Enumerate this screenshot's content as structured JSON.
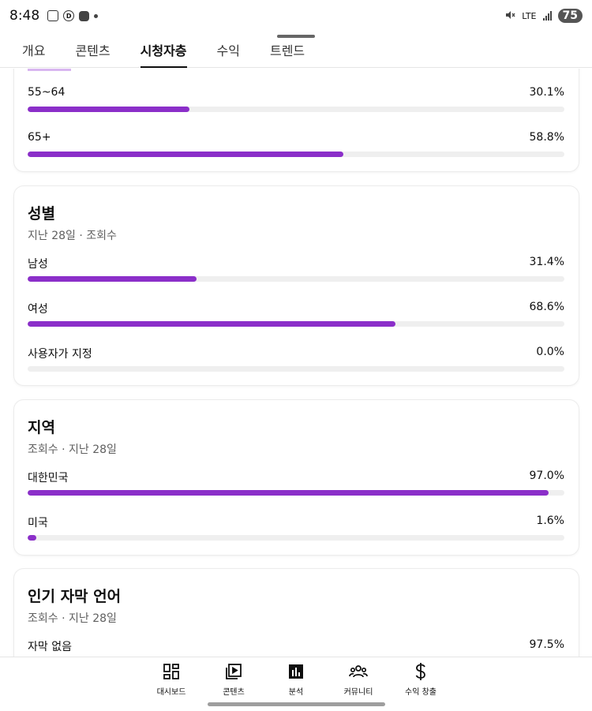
{
  "status_bar": {
    "time": "8:48",
    "network": "LTE",
    "battery": "75"
  },
  "tabs": [
    {
      "label": "개요",
      "active": false
    },
    {
      "label": "콘텐츠",
      "active": false
    },
    {
      "label": "시청자층",
      "active": true
    },
    {
      "label": "수익",
      "active": false
    },
    {
      "label": "트렌드",
      "active": false
    }
  ],
  "age_card": {
    "rows": [
      {
        "label": "55~64",
        "value": "30.1%",
        "fraction": 0.301
      },
      {
        "label": "65+",
        "value": "58.8%",
        "fraction": 0.588
      }
    ]
  },
  "gender_card": {
    "title": "성별",
    "subtitle": "지난 28일 · 조회수",
    "rows": [
      {
        "label": "남성",
        "value": "31.4%",
        "fraction": 0.314
      },
      {
        "label": "여성",
        "value": "68.6%",
        "fraction": 0.686
      },
      {
        "label": "사용자가 지정",
        "value": "0.0%",
        "fraction": 0.0
      }
    ]
  },
  "region_card": {
    "title": "지역",
    "subtitle": "조회수 · 지난 28일",
    "rows": [
      {
        "label": "대한민국",
        "value": "97.0%",
        "fraction": 0.97
      },
      {
        "label": "미국",
        "value": "1.6%",
        "fraction": 0.016
      }
    ]
  },
  "subtitle_card": {
    "title": "인기 자막 언어",
    "subtitle": "조회수 · 지난 28일",
    "rows": [
      {
        "label": "자막 없음",
        "value": "97.5%",
        "fraction": 0.975
      }
    ]
  },
  "bottom_nav": [
    {
      "label": "대시보드",
      "icon": "dashboard-icon"
    },
    {
      "label": "콘텐츠",
      "icon": "content-icon"
    },
    {
      "label": "분석",
      "icon": "analytics-icon"
    },
    {
      "label": "커뮤니티",
      "icon": "community-icon"
    },
    {
      "label": "수익 창출",
      "icon": "earn-icon"
    }
  ],
  "colors": {
    "accent": "#8b2fc9",
    "track": "#efefef"
  }
}
